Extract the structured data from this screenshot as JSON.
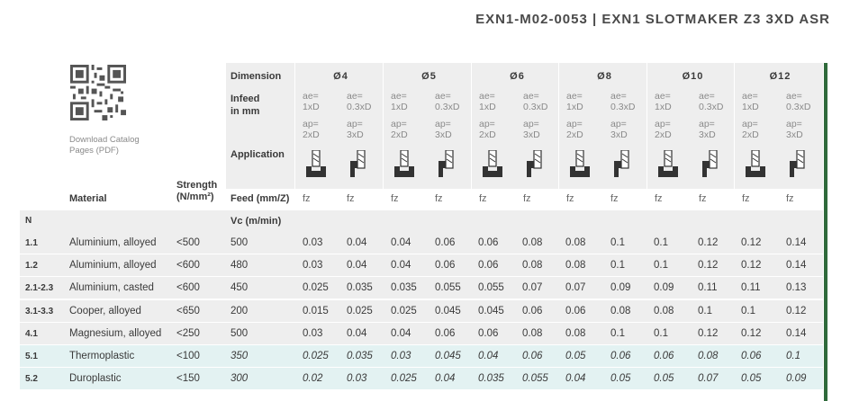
{
  "header": {
    "title": "EXN1-M02-0053 | EXN1 SLOTMAKER Z3 3XD ASR"
  },
  "download": {
    "line1": "Download Catalog",
    "line2": "Pages (PDF)"
  },
  "labels": {
    "dimension": "Dimension",
    "infeed1": "Infeed",
    "infeed2": "in mm",
    "application": "Application",
    "strength1": "Strength",
    "strength2": "(N/mm²)",
    "material": "Material",
    "feed": "Feed (mm/Z)",
    "vc": "Vc (m/min)",
    "group_n": "N"
  },
  "dimensions": [
    "Ø4",
    "Ø5",
    "Ø6",
    "Ø8",
    "Ø10",
    "Ø12"
  ],
  "infeed": {
    "ae_a1": "ae=",
    "ae_a2": "1xD",
    "ae_b1": "ae=",
    "ae_b2": "0.3xD",
    "ap_a1": "ap=",
    "ap_a2": "2xD",
    "ap_b1": "ap=",
    "ap_b2": "3xD"
  },
  "fz": "fz",
  "rows": [
    {
      "code": "1.1",
      "material": "Aluminium, alloyed",
      "strength": "<500",
      "vc": "500",
      "values": [
        "0.03",
        "0.04",
        "0.04",
        "0.06",
        "0.06",
        "0.08",
        "0.08",
        "0.1",
        "0.1",
        "0.12",
        "0.12",
        "0.14"
      ],
      "italic": false
    },
    {
      "code": "1.2",
      "material": "Aluminium, alloyed",
      "strength": "<600",
      "vc": "480",
      "values": [
        "0.03",
        "0.04",
        "0.04",
        "0.06",
        "0.06",
        "0.08",
        "0.08",
        "0.1",
        "0.1",
        "0.12",
        "0.12",
        "0.14"
      ],
      "italic": false
    },
    {
      "code": "2.1-2.3",
      "material": "Aluminium, casted",
      "strength": "<600",
      "vc": "450",
      "values": [
        "0.025",
        "0.035",
        "0.035",
        "0.055",
        "0.055",
        "0.07",
        "0.07",
        "0.09",
        "0.09",
        "0.11",
        "0.11",
        "0.13"
      ],
      "italic": false
    },
    {
      "code": "3.1-3.3",
      "material": "Cooper, alloyed",
      "strength": "<650",
      "vc": "200",
      "values": [
        "0.015",
        "0.025",
        "0.025",
        "0.045",
        "0.045",
        "0.06",
        "0.06",
        "0.08",
        "0.08",
        "0.1",
        "0.1",
        "0.12"
      ],
      "italic": false
    },
    {
      "code": "4.1",
      "material": "Magnesium, alloyed",
      "strength": "<250",
      "vc": "500",
      "values": [
        "0.03",
        "0.04",
        "0.04",
        "0.06",
        "0.06",
        "0.08",
        "0.08",
        "0.1",
        "0.1",
        "0.12",
        "0.12",
        "0.14"
      ],
      "italic": false
    },
    {
      "code": "5.1",
      "material": "Thermoplastic",
      "strength": "<100",
      "vc": "350",
      "values": [
        "0.025",
        "0.035",
        "0.03",
        "0.045",
        "0.04",
        "0.06",
        "0.05",
        "0.06",
        "0.06",
        "0.08",
        "0.06",
        "0.1"
      ],
      "italic": true
    },
    {
      "code": "5.2",
      "material": "Duroplastic",
      "strength": "<150",
      "vc": "300",
      "values": [
        "0.02",
        "0.03",
        "0.025",
        "0.04",
        "0.035",
        "0.055",
        "0.04",
        "0.05",
        "0.05",
        "0.07",
        "0.05",
        "0.09"
      ],
      "italic": true
    }
  ],
  "colors": {
    "accent": "#2f6a3b",
    "band": "#eeeeee",
    "highlight": "#e3f2f2"
  }
}
